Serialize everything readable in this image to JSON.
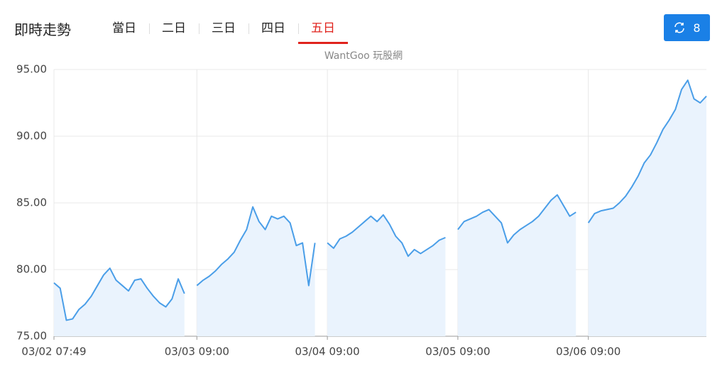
{
  "header": {
    "title": "即時走勢",
    "tabs": [
      "當日",
      "二日",
      "三日",
      "四日",
      "五日"
    ],
    "active_tab": 4,
    "refresh_label": "8"
  },
  "watermark": "WantGoo 玩股網",
  "chart_data": {
    "type": "line",
    "categories": [
      "03/02 07:49",
      null,
      null,
      null,
      null,
      null,
      null,
      null,
      null,
      null,
      null,
      null,
      null,
      null,
      null,
      null,
      null,
      null,
      null,
      null,
      null,
      null,
      null,
      "03/03 09:00",
      null,
      null,
      null,
      null,
      null,
      null,
      null,
      null,
      null,
      null,
      null,
      null,
      null,
      null,
      null,
      null,
      null,
      null,
      null,
      null,
      "03/04 09:00",
      null,
      null,
      null,
      null,
      null,
      null,
      null,
      null,
      null,
      null,
      null,
      null,
      null,
      null,
      null,
      null,
      null,
      null,
      null,
      null,
      "03/05 09:00",
      null,
      null,
      null,
      null,
      null,
      null,
      null,
      null,
      null,
      null,
      null,
      null,
      null,
      null,
      null,
      null,
      null,
      null,
      null,
      null,
      "03/06 09:00",
      null,
      null,
      null,
      null,
      null,
      null,
      null,
      null,
      null,
      null,
      null,
      null,
      null,
      null,
      null,
      null,
      null,
      null,
      null
    ],
    "series": [
      {
        "color": "#4a9ee8",
        "values": [
          79,
          78.6,
          76.2,
          76.3,
          77,
          77.4,
          78,
          78.8,
          79.6,
          80.1,
          79.2,
          78.8,
          78.4,
          79.2,
          79.3,
          78.6,
          78,
          77.5,
          77.2,
          77.8,
          79.3,
          78.2,
          null,
          78.8,
          79.2,
          79.5,
          79.9,
          80.4,
          80.8,
          81.3,
          82.2,
          83,
          84.7,
          83.6,
          83,
          84,
          83.8,
          84,
          83.5,
          81.8,
          82,
          78.8,
          82,
          null,
          82,
          81.6,
          82.3,
          82.5,
          82.8,
          83.2,
          83.6,
          84,
          83.6,
          84.1,
          83.4,
          82.5,
          82,
          81,
          81.5,
          81.2,
          81.5,
          81.8,
          82.2,
          82.4,
          null,
          83,
          83.6,
          83.8,
          84,
          84.3,
          84.5,
          84,
          83.5,
          82,
          82.6,
          83,
          83.3,
          83.6,
          84,
          84.6,
          85.2,
          85.6,
          84.8,
          84,
          84.3,
          null,
          83.5,
          84.2,
          84.4,
          84.5,
          84.6,
          85,
          85.5,
          86.2,
          87,
          88,
          88.6,
          89.5,
          90.5,
          91.2,
          92,
          93.5,
          94.2,
          92.8,
          92.5,
          93
        ]
      }
    ],
    "ylim": [
      75,
      95
    ],
    "yticks": [
      {
        "value": 75,
        "label": "75.00"
      },
      {
        "value": 80,
        "label": "80.00"
      },
      {
        "value": 85,
        "label": "85.00"
      },
      {
        "value": 90,
        "label": "90.00"
      },
      {
        "value": 95,
        "label": "95.00"
      }
    ],
    "grid": true
  }
}
